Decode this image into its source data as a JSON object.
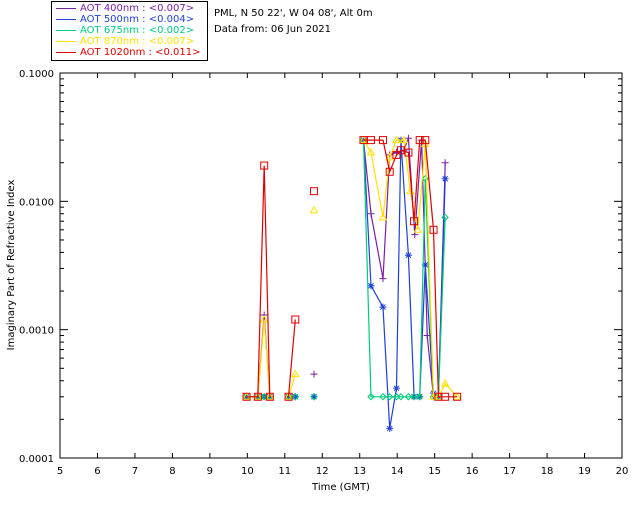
{
  "header": {
    "site_line": "PML, N 50 22', W 04 08', Alt 0m",
    "date_line": "Data from: 06 Jun 2021"
  },
  "legend": [
    {
      "label": "AOT  400nm : <0.007>",
      "color": "#7a1fa2"
    },
    {
      "label": "AOT  500nm : <0.004>",
      "color": "#1f3fd6"
    },
    {
      "label": "AOT  675nm : <0.002>",
      "color": "#00cc7a"
    },
    {
      "label": "AOT  870nm : <0.007>",
      "color": "#ffe000"
    },
    {
      "label": "AOT 1020nm : <0.011>",
      "color": "#e00000"
    }
  ],
  "chart_data": {
    "type": "line",
    "xlabel": "Time (GMT)",
    "ylabel": "Imaginary Part of Refractive Index",
    "xlim": [
      5,
      20
    ],
    "ylim": [
      0.0001,
      0.1
    ],
    "yscale": "log",
    "x_ticks": [
      "5",
      "6",
      "7",
      "8",
      "9",
      "10",
      "11",
      "12",
      "13",
      "14",
      "15",
      "16",
      "17",
      "18",
      "19",
      "20"
    ],
    "y_ticks": [
      {
        "value": 0.0001,
        "label": "0.0001"
      },
      {
        "value": 0.001,
        "label": "0.0010"
      },
      {
        "value": 0.01,
        "label": "0.0100"
      },
      {
        "value": 0.1,
        "label": "0.1000"
      }
    ],
    "grid": false,
    "series": [
      {
        "name": "AOT  400nm : <0.007>",
        "color": "#7a1fa2",
        "marker": "plus",
        "segments": [
          [
            [
              9.98,
              0.0003
            ],
            [
              10.28,
              0.0003
            ],
            [
              10.45,
              0.0013
            ],
            [
              10.6,
              0.0003
            ]
          ],
          [
            [
              11.1,
              0.0003
            ],
            [
              11.28,
              0.0003
            ]
          ],
          [
            [
              11.78,
              0.00045
            ]
          ],
          [
            [
              13.1,
              0.03
            ],
            [
              13.3,
              0.008
            ],
            [
              13.62,
              0.0025
            ],
            [
              13.8,
              0.023
            ],
            [
              13.98,
              0.024
            ],
            [
              14.18,
              0.025
            ],
            [
              14.3,
              0.031
            ],
            [
              14.47,
              0.0055
            ],
            [
              14.65,
              0.03
            ],
            [
              14.8,
              0.0009
            ],
            [
              14.97,
              0.0003
            ],
            [
              15.1,
              0.0003
            ],
            [
              15.28,
              0.02
            ]
          ]
        ]
      },
      {
        "name": "AOT  500nm : <0.004>",
        "color": "#1f3fd6",
        "marker": "star",
        "segments": [
          [
            [
              9.98,
              0.0003
            ],
            [
              10.28,
              0.0003
            ],
            [
              10.45,
              0.0003
            ],
            [
              10.6,
              0.0003
            ]
          ],
          [
            [
              11.1,
              0.0003
            ],
            [
              11.28,
              0.0003
            ]
          ],
          [
            [
              11.78,
              0.0003
            ]
          ],
          [
            [
              13.1,
              0.03
            ],
            [
              13.3,
              0.0022
            ],
            [
              13.62,
              0.0015
            ],
            [
              13.8,
              0.00017
            ],
            [
              13.98,
              0.00035
            ],
            [
              14.1,
              0.03
            ],
            [
              14.3,
              0.0038
            ],
            [
              14.45,
              0.0003
            ],
            [
              14.6,
              0.0003
            ],
            [
              14.75,
              0.0032
            ],
            [
              14.97,
              0.00032
            ],
            [
              15.1,
              0.0003
            ],
            [
              15.28,
              0.015
            ]
          ]
        ]
      },
      {
        "name": "AOT  675nm : <0.002>",
        "color": "#00cc7a",
        "marker": "diamond",
        "segments": [
          [
            [
              9.98,
              0.0003
            ],
            [
              10.28,
              0.0003
            ],
            [
              10.45,
              0.0003
            ],
            [
              10.6,
              0.0003
            ]
          ],
          [
            [
              11.1,
              0.0003
            ],
            [
              11.28,
              0.0003
            ]
          ],
          [
            [
              11.78,
              0.0003
            ]
          ],
          [
            [
              13.1,
              0.03
            ],
            [
              13.3,
              0.0003
            ],
            [
              13.62,
              0.0003
            ],
            [
              13.8,
              0.0003
            ],
            [
              13.98,
              0.0003
            ],
            [
              14.1,
              0.0003
            ],
            [
              14.3,
              0.0003
            ],
            [
              14.45,
              0.0003
            ],
            [
              14.6,
              0.0003
            ],
            [
              14.75,
              0.015
            ],
            [
              14.97,
              0.0003
            ],
            [
              15.1,
              0.0003
            ],
            [
              15.28,
              0.0075
            ]
          ]
        ]
      },
      {
        "name": "AOT  870nm : <0.007>",
        "color": "#ffe000",
        "marker": "triangle",
        "segments": [
          [
            [
              9.98,
              0.0003
            ],
            [
              10.28,
              0.0003
            ],
            [
              10.45,
              0.0012
            ],
            [
              10.6,
              0.0003
            ]
          ],
          [
            [
              11.1,
              0.0003
            ],
            [
              11.28,
              0.00045
            ]
          ],
          [
            [
              11.78,
              0.0085
            ]
          ],
          [
            [
              13.1,
              0.03
            ],
            [
              13.3,
              0.024
            ],
            [
              13.62,
              0.0075
            ],
            [
              13.8,
              0.022
            ],
            [
              13.98,
              0.03
            ],
            [
              14.18,
              0.03
            ],
            [
              14.35,
              0.012
            ],
            [
              14.55,
              0.006
            ],
            [
              14.75,
              0.028
            ],
            [
              14.97,
              0.0003
            ],
            [
              15.1,
              0.0003
            ],
            [
              15.28,
              0.00038
            ],
            [
              15.6,
              0.0003
            ]
          ]
        ]
      },
      {
        "name": "AOT 1020nm : <0.011>",
        "color": "#e00000",
        "marker": "square",
        "segments": [
          [
            [
              9.98,
              0.0003
            ],
            [
              10.28,
              0.0003
            ],
            [
              10.45,
              0.019
            ],
            [
              10.6,
              0.0003
            ]
          ],
          [
            [
              11.1,
              0.0003
            ],
            [
              11.28,
              0.0012
            ]
          ],
          [
            [
              11.78,
              0.012
            ]
          ],
          [
            [
              13.1,
              0.03
            ],
            [
              13.3,
              0.03
            ],
            [
              13.62,
              0.03
            ],
            [
              13.8,
              0.017
            ],
            [
              13.98,
              0.023
            ],
            [
              14.1,
              0.025
            ],
            [
              14.3,
              0.024
            ],
            [
              14.45,
              0.007
            ],
            [
              14.6,
              0.03
            ],
            [
              14.75,
              0.03
            ],
            [
              14.97,
              0.006
            ],
            [
              15.1,
              0.0003
            ],
            [
              15.28,
              0.0003
            ],
            [
              15.6,
              0.0003
            ]
          ]
        ]
      }
    ]
  }
}
